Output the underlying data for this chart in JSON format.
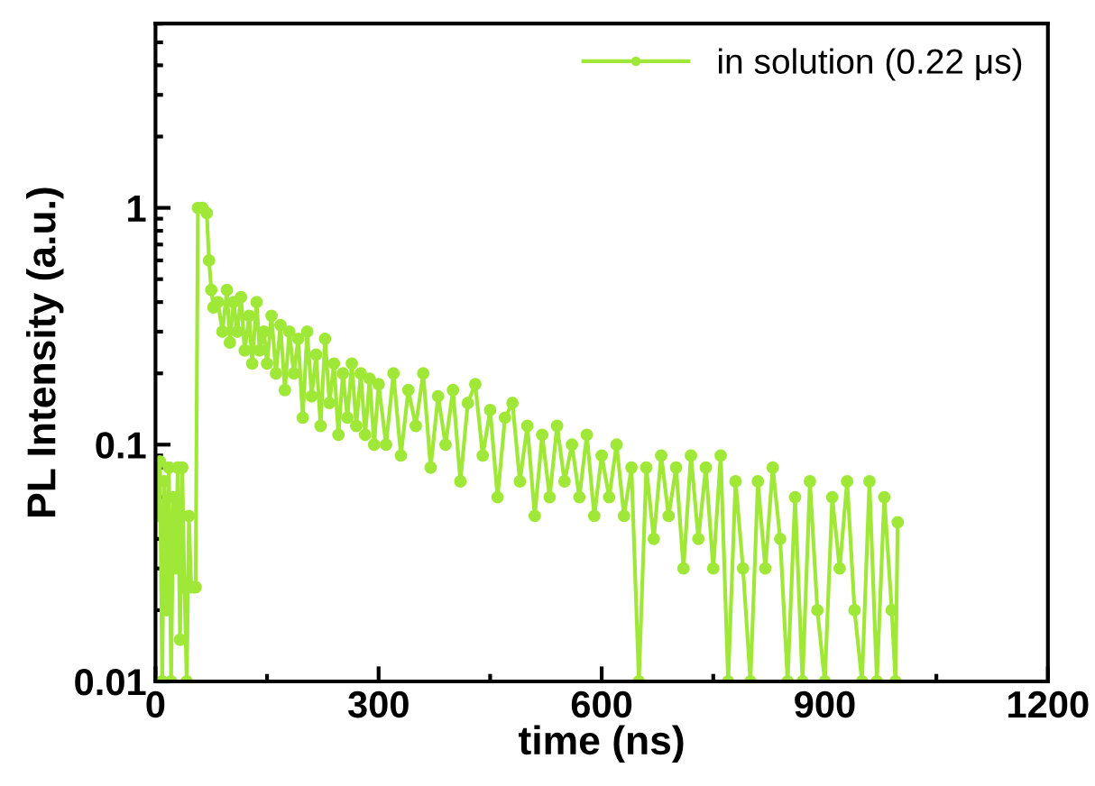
{
  "chart_data": {
    "type": "line",
    "xlabel": "time (ns)",
    "ylabel": "PL Intensity (a.u.)",
    "log": "y",
    "xlim": [
      0,
      1200
    ],
    "xticks": [
      0,
      300,
      600,
      900,
      1200
    ],
    "ylim": [
      0.01,
      6
    ],
    "yticks": [
      0.01,
      0.1,
      1
    ],
    "legend": "top right",
    "marker": "circle",
    "line_style": "solid",
    "grid": false,
    "series": [
      {
        "name": "in solution (0.22 μs)",
        "color": "#a0e838",
        "x": [
          0,
          3,
          6,
          9,
          12,
          15,
          18,
          21,
          24,
          27,
          30,
          33,
          36,
          39,
          42,
          45,
          48,
          51,
          54,
          57,
          63,
          69,
          72,
          75,
          78,
          84,
          90,
          96,
          100,
          105,
          110,
          115,
          120,
          126,
          130,
          136,
          140,
          146,
          150,
          156,
          162,
          168,
          174,
          180,
          186,
          192,
          198,
          204,
          210,
          216,
          222,
          228,
          234,
          240,
          246,
          252,
          258,
          264,
          270,
          276,
          282,
          288,
          294,
          300,
          310,
          320,
          330,
          340,
          350,
          360,
          370,
          380,
          390,
          400,
          410,
          420,
          430,
          440,
          450,
          460,
          470,
          480,
          490,
          500,
          510,
          520,
          530,
          540,
          550,
          560,
          570,
          580,
          590,
          600,
          610,
          620,
          630,
          640,
          650,
          660,
          670,
          680,
          690,
          700,
          710,
          720,
          730,
          740,
          750,
          760,
          770,
          780,
          790,
          800,
          810,
          820,
          830,
          840,
          850,
          860,
          870,
          880,
          890,
          900,
          910,
          920,
          930,
          940,
          950,
          960,
          970,
          980,
          990,
          995,
          998
        ],
        "values": [
          0.08,
          0.05,
          0.085,
          0.01,
          0.07,
          0.02,
          0.08,
          0.01,
          0.06,
          0.03,
          0.08,
          0.015,
          0.08,
          0.025,
          0.01,
          0.05,
          0.025,
          0.025,
          0.025,
          1.0,
          1.0,
          0.95,
          0.6,
          0.45,
          0.38,
          0.4,
          0.3,
          0.45,
          0.27,
          0.4,
          0.3,
          0.42,
          0.25,
          0.35,
          0.22,
          0.4,
          0.25,
          0.3,
          0.22,
          0.35,
          0.2,
          0.32,
          0.17,
          0.3,
          0.2,
          0.28,
          0.13,
          0.3,
          0.16,
          0.24,
          0.12,
          0.28,
          0.15,
          0.22,
          0.11,
          0.2,
          0.13,
          0.22,
          0.12,
          0.2,
          0.11,
          0.19,
          0.1,
          0.18,
          0.1,
          0.2,
          0.09,
          0.17,
          0.12,
          0.2,
          0.08,
          0.16,
          0.1,
          0.17,
          0.07,
          0.15,
          0.18,
          0.09,
          0.14,
          0.06,
          0.13,
          0.15,
          0.07,
          0.12,
          0.05,
          0.11,
          0.06,
          0.12,
          0.07,
          0.1,
          0.06,
          0.11,
          0.05,
          0.09,
          0.06,
          0.1,
          0.05,
          0.08,
          0.01,
          0.08,
          0.04,
          0.09,
          0.05,
          0.08,
          0.03,
          0.09,
          0.04,
          0.08,
          0.03,
          0.09,
          0.01,
          0.07,
          0.03,
          0.01,
          0.07,
          0.03,
          0.08,
          0.04,
          0.01,
          0.06,
          0.01,
          0.07,
          0.02,
          0.01,
          0.06,
          0.03,
          0.07,
          0.02,
          0.01,
          0.07,
          0.01,
          0.06,
          0.02,
          0.01,
          0.047
        ]
      }
    ]
  }
}
